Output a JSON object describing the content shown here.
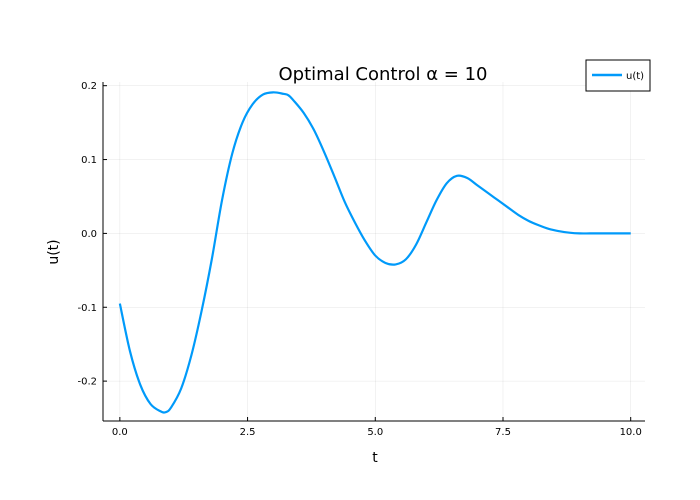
{
  "chart_data": {
    "type": "line",
    "title": "Optimal Control α = 10",
    "xlabel": "t",
    "ylabel": "u(t)",
    "xlim": [
      -0.33,
      10.28
    ],
    "ylim": [
      -0.254,
      0.205
    ],
    "xticks": [
      0.0,
      2.5,
      5.0,
      7.5,
      10.0
    ],
    "xtick_labels": [
      "0.0",
      "2.5",
      "5.0",
      "7.5",
      "10.0"
    ],
    "yticks": [
      -0.2,
      -0.1,
      0.0,
      0.1,
      0.2
    ],
    "ytick_labels": [
      "-0.2",
      "-0.1",
      "0.0",
      "0.1",
      "0.2"
    ],
    "grid": true,
    "legend": "top-right",
    "series": [
      {
        "name": "u(t)",
        "color": "#009AFA",
        "x": [
          0.0,
          0.2,
          0.4,
          0.6,
          0.8,
          0.9,
          1.0,
          1.2,
          1.4,
          1.6,
          1.8,
          2.0,
          2.2,
          2.4,
          2.6,
          2.8,
          3.0,
          3.2,
          3.3,
          3.4,
          3.6,
          3.8,
          4.0,
          4.2,
          4.4,
          4.6,
          4.8,
          5.0,
          5.2,
          5.4,
          5.6,
          5.8,
          6.0,
          6.2,
          6.4,
          6.6,
          6.8,
          7.0,
          7.2,
          7.4,
          7.6,
          7.8,
          8.0,
          8.2,
          8.4,
          8.6,
          8.8,
          9.0,
          9.2,
          9.4,
          9.6,
          9.8,
          10.0
        ],
        "y": [
          -0.095,
          -0.16,
          -0.205,
          -0.231,
          -0.241,
          -0.242,
          -0.236,
          -0.21,
          -0.165,
          -0.105,
          -0.035,
          0.045,
          0.108,
          0.15,
          0.175,
          0.188,
          0.191,
          0.189,
          0.187,
          0.18,
          0.163,
          0.14,
          0.11,
          0.077,
          0.043,
          0.015,
          -0.01,
          -0.03,
          -0.04,
          -0.042,
          -0.035,
          -0.015,
          0.015,
          0.045,
          0.068,
          0.078,
          0.075,
          0.065,
          0.055,
          0.045,
          0.035,
          0.025,
          0.017,
          0.011,
          0.006,
          0.003,
          0.001,
          0.0,
          0.0,
          0.0,
          0.0,
          0.0,
          0.0
        ]
      }
    ]
  }
}
